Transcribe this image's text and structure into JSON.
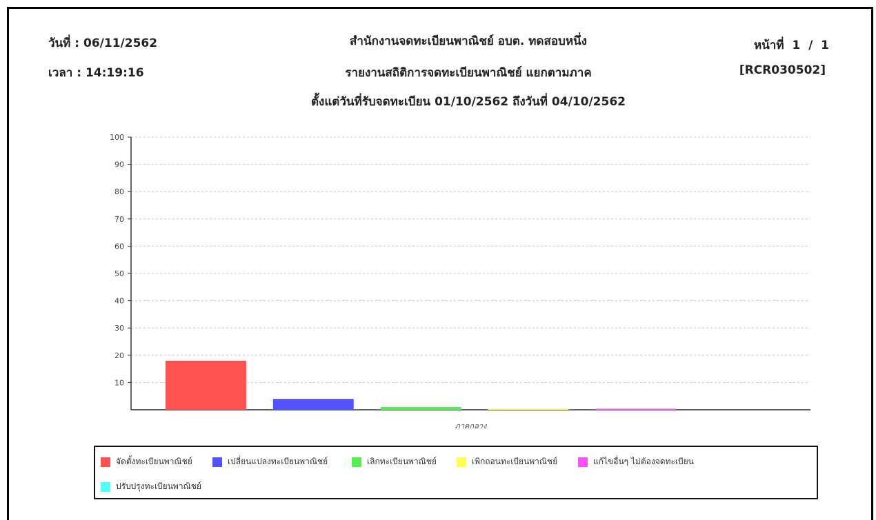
{
  "header": {
    "date_label": "วันที่ :",
    "date_value": "06/11/2562",
    "time_label": "เวลา :",
    "time_value": "14:19:16",
    "org_title": "สำนักงานจดทะเบียนพาณิชย์ อบต. ทดสอบหนึ่ง",
    "report_title": "รายงานสถิติการจดทะเบียนพาณิชย์ แยกตามภาค",
    "date_range": "ตั้งแต่วันที่รับจดทะเบียน 01/10/2562 ถึงวันที่ 04/10/2562",
    "page_label": "หน้าที่",
    "page_current": "1",
    "page_sep": "/",
    "page_total": "1",
    "report_code": "[RCR030502]"
  },
  "chart_data": {
    "type": "bar",
    "categories": [
      "ภาคกลาง"
    ],
    "series": [
      {
        "name": "จัดตั้งทะเบียนพาณิชย์",
        "color": "#ff5252",
        "values": [
          18
        ]
      },
      {
        "name": "เปลี่ยนแปลงทะเบียนพาณิชย์",
        "color": "#5252ff",
        "values": [
          4
        ]
      },
      {
        "name": "เลิกทะเบียนพาณิชย์",
        "color": "#52ee52",
        "values": [
          1
        ]
      },
      {
        "name": "เพิกถอนทะเบียนพาณิชย์",
        "color": "#ffff52",
        "values": [
          0.4
        ]
      },
      {
        "name": "แก้ไขอื่นๆ ไม่ต้องจดทะเบียน",
        "color": "#ff52ff",
        "values": [
          0.4
        ]
      },
      {
        "name": "ปรับปรุงทะเบียนพาณิชย์",
        "color": "#52ffff",
        "values": [
          0
        ]
      }
    ],
    "ylim": [
      0,
      100
    ],
    "yticks": [
      10,
      20,
      30,
      40,
      50,
      60,
      70,
      80,
      90,
      100
    ],
    "grid": true,
    "legend_position": "bottom"
  }
}
